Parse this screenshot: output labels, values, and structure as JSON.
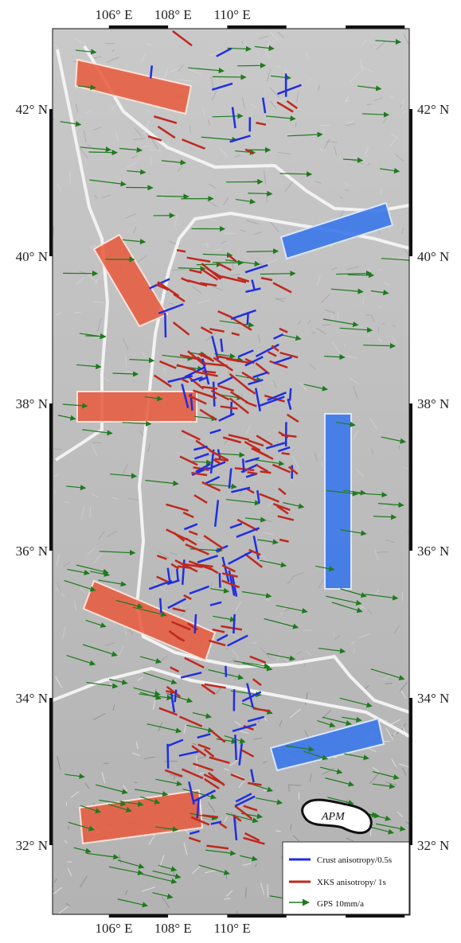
{
  "map": {
    "lon_labels": [
      "106° E",
      "108° E",
      "110° E"
    ],
    "lat_labels": [
      "42° N",
      "40° N",
      "38° N",
      "36° N",
      "34° N",
      "32° N"
    ],
    "annotation": "APM",
    "legend": [
      "Crust anisotropy/0.5s",
      "XKS anisotropy/ 1s",
      "GPS 10mm/a"
    ]
  }
}
